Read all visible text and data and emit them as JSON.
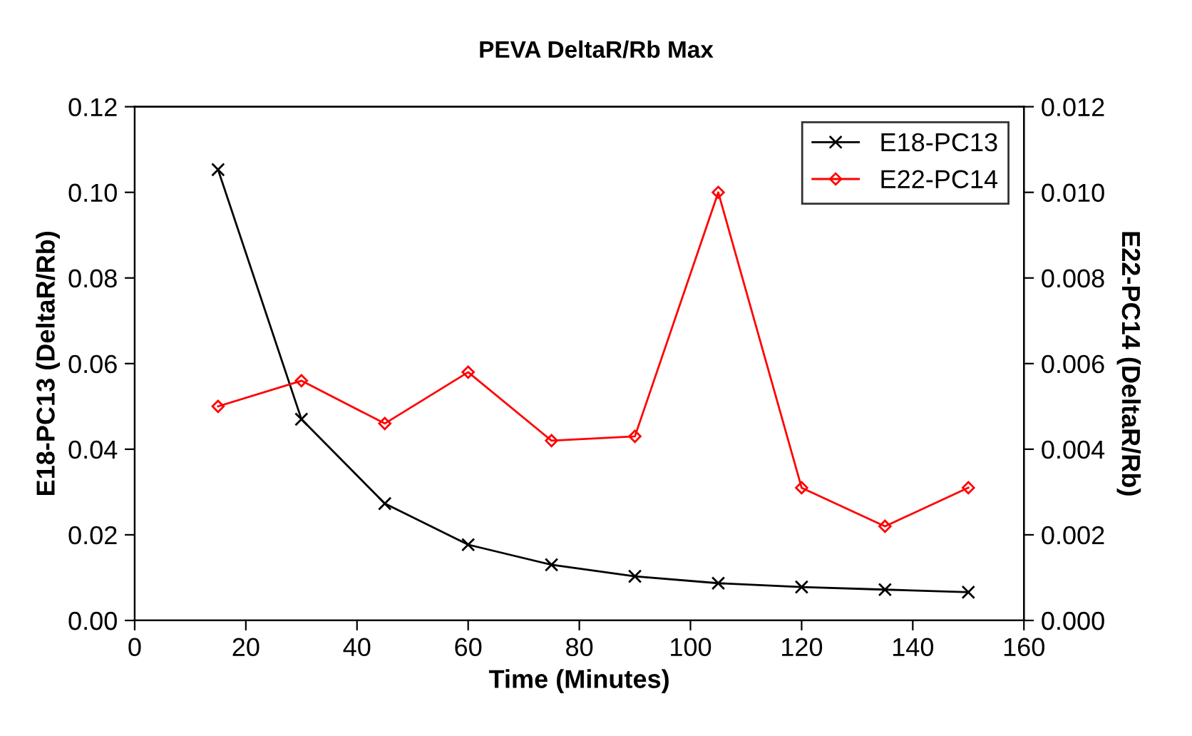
{
  "chart_data": {
    "type": "line",
    "title": "PEVA DeltaR/Rb Max",
    "xlabel": "Time (Minutes)",
    "ylabel": "E18-PC13 (DeltaR/Rb)",
    "y2label": "E22-PC14 (DeltaR/Rb)",
    "x": [
      15,
      30,
      45,
      60,
      75,
      90,
      105,
      120,
      135,
      150
    ],
    "series": [
      {
        "name": "E18-PC13",
        "color": "#000000",
        "marker": "cross",
        "values": [
          0.1053,
          0.047,
          0.0273,
          0.0177,
          0.013,
          0.0103,
          0.0087,
          0.0078,
          0.0072,
          0.0066
        ]
      },
      {
        "name": "E22-PC14",
        "color": "#ff0000",
        "marker": "diamond",
        "axis": "y2",
        "values": [
          0.005,
          0.0056,
          0.0046,
          0.0058,
          0.0042,
          0.0043,
          0.01,
          0.0031,
          0.0022,
          0.0031
        ]
      }
    ],
    "xlim": [
      0,
      160
    ],
    "xticks": [
      0,
      20,
      40,
      60,
      80,
      100,
      120,
      140,
      160
    ],
    "ylim": [
      0,
      0.12
    ],
    "yticks": [
      {
        "value": 0,
        "label": "0.00"
      },
      {
        "value": 0.02,
        "label": "0.02"
      },
      {
        "value": 0.04,
        "label": "0.04"
      },
      {
        "value": 0.06,
        "label": "0.06"
      },
      {
        "value": 0.08,
        "label": "0.08"
      },
      {
        "value": 0.1,
        "label": "0.10"
      },
      {
        "value": 0.12,
        "label": "0.12"
      }
    ],
    "y2lim": [
      0,
      0.012
    ],
    "y2ticks": [
      {
        "value": 0,
        "label": "0.000"
      },
      {
        "value": 0.002,
        "label": "0.002"
      },
      {
        "value": 0.004,
        "label": "0.004"
      },
      {
        "value": 0.006,
        "label": "0.006"
      },
      {
        "value": 0.008,
        "label": "0.008"
      },
      {
        "value": 0.01,
        "label": "0.010"
      },
      {
        "value": 0.012,
        "label": "0.012"
      }
    ],
    "grid": false,
    "legend": "top right",
    "line_style": "solid"
  }
}
